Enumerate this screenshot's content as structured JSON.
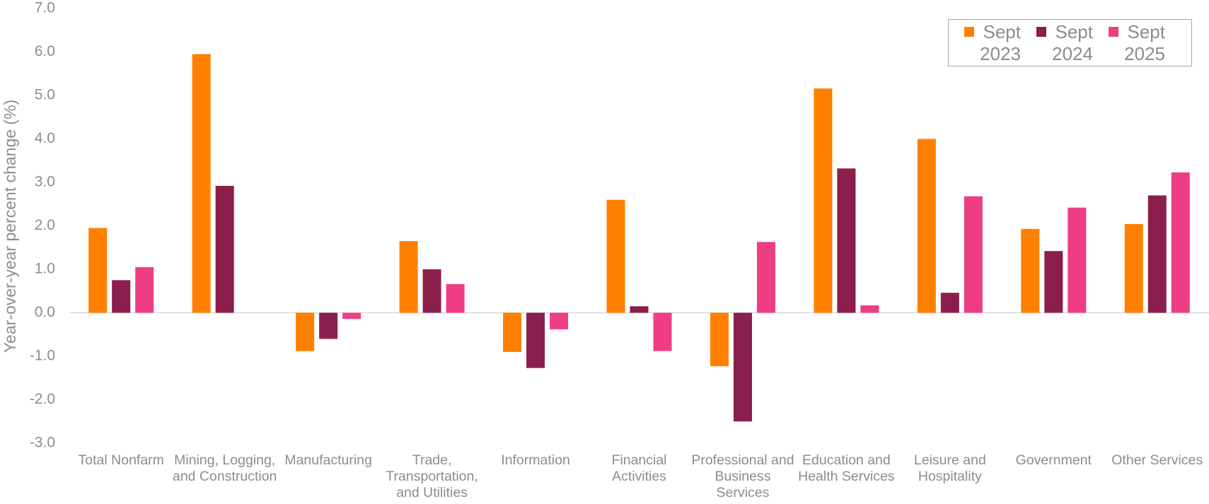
{
  "chart_data": {
    "type": "bar",
    "y_axis_label": "Year-over-year percent change (%)",
    "categories": [
      "Total Nonfarm",
      "Mining, Logging, and Construction",
      "Manufacturing",
      "Trade, Transportation, and Utilities",
      "Information",
      "Financial Activities",
      "Professional and Business Services",
      "Education and Health Services",
      "Leisure and Hospitality",
      "Government",
      "Other Services"
    ],
    "series": [
      {
        "name": "Sept 2023",
        "color": "#ff8000",
        "values": [
          1.95,
          5.95,
          -0.88,
          1.65,
          -0.9,
          2.6,
          -1.23,
          5.16,
          4.0,
          1.93,
          2.04
        ]
      },
      {
        "name": "Sept 2024",
        "color": "#8b1e4a",
        "values": [
          0.75,
          2.92,
          -0.6,
          1.0,
          -1.27,
          0.15,
          -2.5,
          3.32,
          0.46,
          1.42,
          2.7
        ]
      },
      {
        "name": "Sept 2025",
        "color": "#ef3d83",
        "values": [
          1.05,
          null,
          -0.14,
          0.66,
          -0.38,
          -0.88,
          1.63,
          0.17,
          2.68,
          2.42,
          3.23
        ]
      }
    ],
    "ylim": [
      -3,
      7
    ],
    "yticks": [
      {
        "value": -3,
        "label": "-3.0"
      },
      {
        "value": -2,
        "label": "-2.0"
      },
      {
        "value": -1,
        "label": "-1.0"
      },
      {
        "value": 0,
        "label": "0.0"
      },
      {
        "value": 1,
        "label": "1.0"
      },
      {
        "value": 2,
        "label": "2.0"
      },
      {
        "value": 3,
        "label": "3.0"
      },
      {
        "value": 4,
        "label": "4.0"
      },
      {
        "value": 5,
        "label": "5.0"
      },
      {
        "value": 6,
        "label": "6.0"
      },
      {
        "value": 7,
        "label": "7.0"
      }
    ],
    "grid": false,
    "legend": "top-right"
  }
}
